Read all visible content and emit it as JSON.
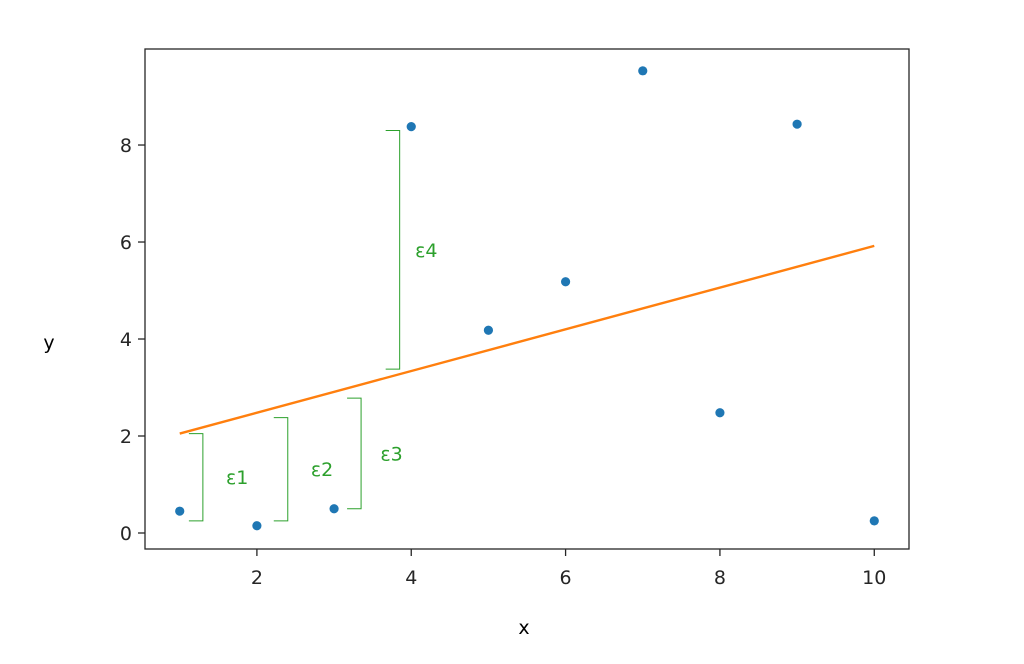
{
  "chart_data": {
    "type": "scatter",
    "title": "",
    "xlabel": "x",
    "ylabel": "y",
    "xlim": [
      0.55,
      10.45
    ],
    "ylim": [
      -0.33,
      9.98
    ],
    "xticks": [
      2,
      4,
      6,
      8,
      10
    ],
    "yticks": [
      0,
      2,
      4,
      6,
      8
    ],
    "grid": false,
    "series": [
      {
        "kind": "scatter",
        "color": "#1f77b4",
        "x": [
          1,
          2,
          3,
          4,
          5,
          6,
          7,
          8,
          9,
          10
        ],
        "y": [
          0.45,
          0.15,
          0.5,
          8.38,
          4.18,
          5.18,
          9.53,
          2.48,
          8.43,
          0.25
        ]
      },
      {
        "kind": "line",
        "color": "#ff7f0e",
        "x": [
          1,
          10
        ],
        "y": [
          2.05,
          5.92
        ]
      }
    ],
    "annotations": [
      {
        "label": "ε1",
        "x": 1.3,
        "y_from": 0.25,
        "y_to": 2.05,
        "label_x": 1.6
      },
      {
        "label": "ε2",
        "x": 2.4,
        "y_from": 0.25,
        "y_to": 2.38,
        "label_x": 2.7
      },
      {
        "label": "ε3",
        "x": 3.35,
        "y_from": 0.5,
        "y_to": 2.78,
        "label_x": 3.6
      },
      {
        "label": "ε4",
        "x": 3.85,
        "y_from": 3.38,
        "y_to": 8.3,
        "label_x": 4.05
      }
    ],
    "annotation_color": "#2ca02c"
  }
}
